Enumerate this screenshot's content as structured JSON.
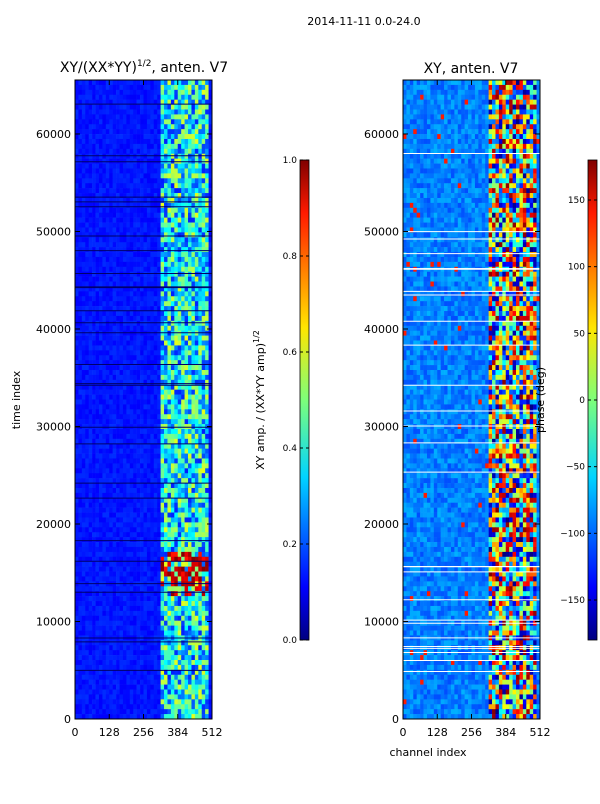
{
  "figure": {
    "suptitle": "2014-11-11 0.0-24.0"
  },
  "chart_data": [
    {
      "type": "heatmap",
      "title": "XY/(XX*YY)^1/2, anten. V7",
      "title_main": "XY/(XX*YY)",
      "title_exp": "1/2",
      "title_rest": ", anten. V7",
      "xlabel": "",
      "ylabel": "time index",
      "xlim": [
        0,
        512
      ],
      "ylim": [
        0,
        65536
      ],
      "xticks": [
        "0",
        "128",
        "256",
        "384",
        "512"
      ],
      "xtick_values": [
        0,
        128,
        256,
        384,
        512
      ],
      "yticks": [
        "0",
        "10000",
        "20000",
        "30000",
        "40000",
        "50000",
        "60000"
      ],
      "ytick_values": [
        0,
        10000,
        20000,
        30000,
        40000,
        50000,
        60000
      ],
      "colormap": "jet",
      "colorbar": {
        "label": "XY amp. / (XX*YY amp)^1/2",
        "label_main": "XY amp. / (XX*YY amp)",
        "label_exp": "1/2",
        "range": [
          0.0,
          1.0
        ],
        "ticks": [
          "0.0",
          "0.2",
          "0.4",
          "0.6",
          "0.8",
          "1.0"
        ],
        "tick_values": [
          0.0,
          0.2,
          0.4,
          0.6,
          0.8,
          1.0
        ]
      }
    },
    {
      "type": "heatmap",
      "title": "XY, anten. V7",
      "xlabel": "channel index",
      "ylabel": "",
      "xlim": [
        0,
        512
      ],
      "ylim": [
        0,
        65536
      ],
      "xticks": [
        "0",
        "128",
        "256",
        "384",
        "512"
      ],
      "xtick_values": [
        0,
        128,
        256,
        384,
        512
      ],
      "yticks": [
        "0",
        "10000",
        "20000",
        "30000",
        "40000",
        "50000",
        "60000"
      ],
      "ytick_values": [
        0,
        10000,
        20000,
        30000,
        40000,
        50000,
        60000
      ],
      "colormap": "jet",
      "colorbar": {
        "label": "phase (deg)",
        "range": [
          -180,
          180
        ],
        "ticks": [
          "−150",
          "−100",
          "−50",
          "0",
          "50",
          "100",
          "150"
        ],
        "tick_values": [
          -150,
          -100,
          -50,
          0,
          50,
          100,
          150
        ]
      }
    }
  ]
}
